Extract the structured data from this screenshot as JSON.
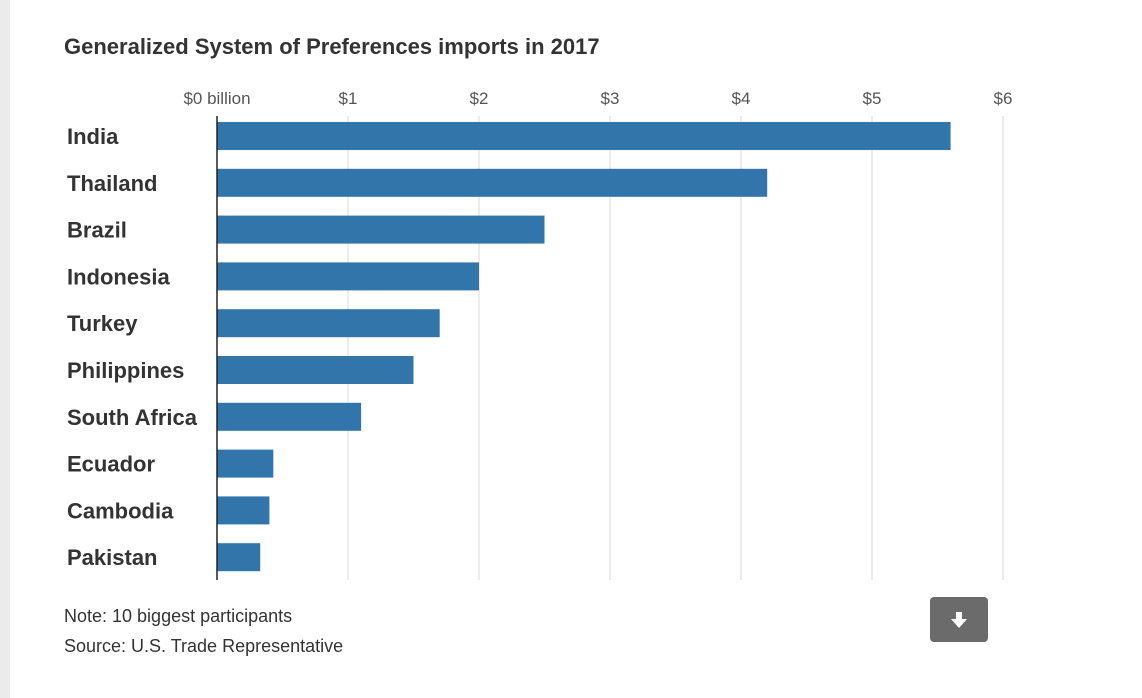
{
  "chart_data": {
    "type": "bar",
    "orientation": "horizontal",
    "title": "Generalized System of Preferences imports in 2017",
    "categories": [
      "India",
      "Thailand",
      "Brazil",
      "Indonesia",
      "Turkey",
      "Philippines",
      "South Africa",
      "Ecuador",
      "Cambodia",
      "Pakistan"
    ],
    "values": [
      5.6,
      4.2,
      2.5,
      2.0,
      1.7,
      1.5,
      1.1,
      0.43,
      0.4,
      0.33
    ],
    "unit": "billion USD",
    "xlim": [
      0,
      6
    ],
    "ticks": [
      0,
      1,
      2,
      3,
      4,
      5,
      6
    ],
    "tick_labels": [
      "$0 billion",
      "$1",
      "$2",
      "$3",
      "$4",
      "$5",
      "$6"
    ],
    "xaxis_position": "top",
    "grid": true,
    "bar_color": "#3275ab",
    "grid_color": "#d9d9d9"
  },
  "footer": {
    "note": "Note: 10 biggest participants",
    "source": "Source: U.S. Trade Representative"
  },
  "download": {
    "icon": "download-arrow-icon"
  }
}
